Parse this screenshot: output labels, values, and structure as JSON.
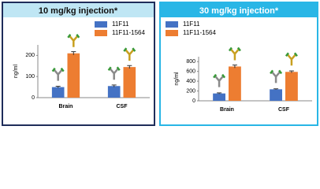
{
  "chart_data": [
    {
      "type": "bar",
      "title": "10 mg/kg injection*",
      "y_label": "ng/ml",
      "categories": [
        "Brain",
        "CSF"
      ],
      "series": [
        {
          "name": "11F11",
          "color": "#4472c4",
          "values": [
            50,
            55
          ],
          "errors": [
            4,
            5
          ]
        },
        {
          "name": "11F11-1564",
          "color": "#ed7d31",
          "values": [
            210,
            145
          ],
          "errors": [
            8,
            7
          ]
        }
      ],
      "ylim": [
        0,
        250
      ],
      "yticks": [
        0,
        100,
        200
      ]
    },
    {
      "type": "bar",
      "title": "30 mg/kg injection*",
      "y_label": "ng/ml",
      "categories": [
        "Brain",
        "CSF"
      ],
      "series": [
        {
          "name": "11F11",
          "color": "#4472c4",
          "values": [
            150,
            235
          ],
          "errors": [
            12,
            10
          ]
        },
        {
          "name": "11F11-1564",
          "color": "#ed7d31",
          "values": [
            700,
            590
          ],
          "errors": [
            30,
            20
          ]
        }
      ],
      "ylim": [
        0,
        900
      ],
      "yticks": [
        0,
        200,
        400,
        600,
        800
      ]
    }
  ]
}
